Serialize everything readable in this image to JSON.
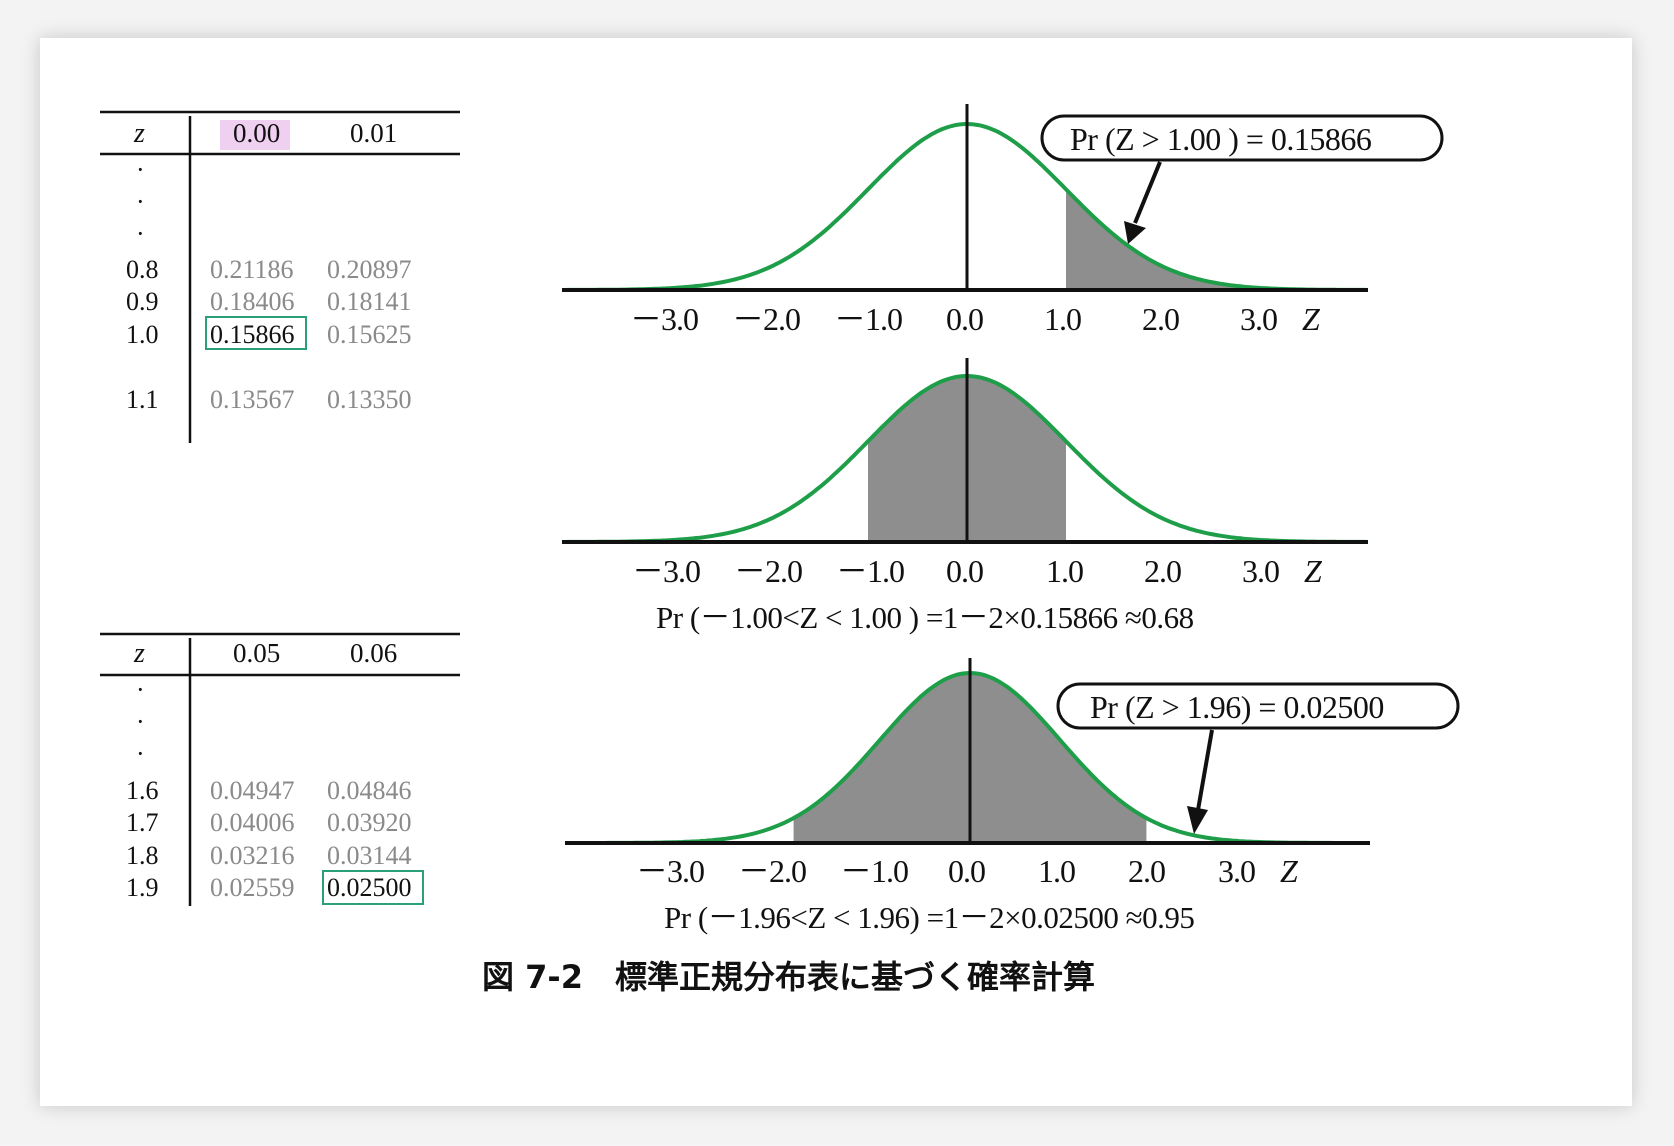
{
  "tables": [
    {
      "z_header": "z",
      "col_headers": [
        "0.00",
        "0.01"
      ],
      "ellipsis": [
        "·",
        "·",
        "·"
      ],
      "rows": [
        {
          "label": "0.8",
          "values": [
            "0.21186",
            "0.20897"
          ]
        },
        {
          "label": "0.9",
          "values": [
            "0.18406",
            "0.18141"
          ]
        },
        {
          "label": "1.0",
          "values": [
            "0.15866",
            "0.15625"
          ]
        },
        {
          "label": "1.1",
          "values": [
            "0.13567",
            "0.13350"
          ]
        }
      ]
    },
    {
      "z_header": "z",
      "col_headers": [
        "0.05",
        "0.06"
      ],
      "ellipsis": [
        "·",
        "·",
        "·"
      ],
      "rows": [
        {
          "label": "1.6",
          "values": [
            "0.04947",
            "0.04846"
          ]
        },
        {
          "label": "1.7",
          "values": [
            "0.04006",
            "0.03920"
          ]
        },
        {
          "label": "1.8",
          "values": [
            "0.03216",
            "0.03144"
          ]
        },
        {
          "label": "1.9",
          "values": [
            "0.02559",
            "0.02500"
          ]
        }
      ]
    }
  ],
  "plots": [
    {
      "ticks": [
        "－3.0",
        "－2.0",
        "－1.0",
        "0.0",
        "1.0",
        "2.0",
        "3.0"
      ],
      "axis_label": "Z",
      "bubble": "Pr (Z > 1.00 ) = 0.15866",
      "formula": "",
      "shade": [
        1.0,
        3.6
      ]
    },
    {
      "ticks": [
        "－3.0",
        "－2.0",
        "－1.0",
        "0.0",
        "1.0",
        "2.0",
        "3.0"
      ],
      "axis_label": "Z",
      "bubble": "",
      "formula": "Pr (－1.00<Z < 1.00 ) =1－2×0.15866 ≈0.68",
      "shade": [
        -1.0,
        1.0
      ]
    },
    {
      "ticks": [
        "－3.0",
        "－2.0",
        "－1.0",
        "0.0",
        "1.0",
        "2.0",
        "3.0"
      ],
      "axis_label": "Z",
      "bubble": "Pr (Z > 1.96) = 0.02500",
      "formula": "Pr (－1.96<Z < 1.96) =1－2×0.02500 ≈0.95",
      "shade": [
        -1.96,
        1.96
      ]
    }
  ],
  "caption": "図 7-2　標準正規分布表に基づく確率計算",
  "colors": {
    "curve": "#1f9e4a",
    "shade": "#8e8e8e",
    "highlight_box": "#2aa07a",
    "header_highlight": "#f0d0f0"
  }
}
